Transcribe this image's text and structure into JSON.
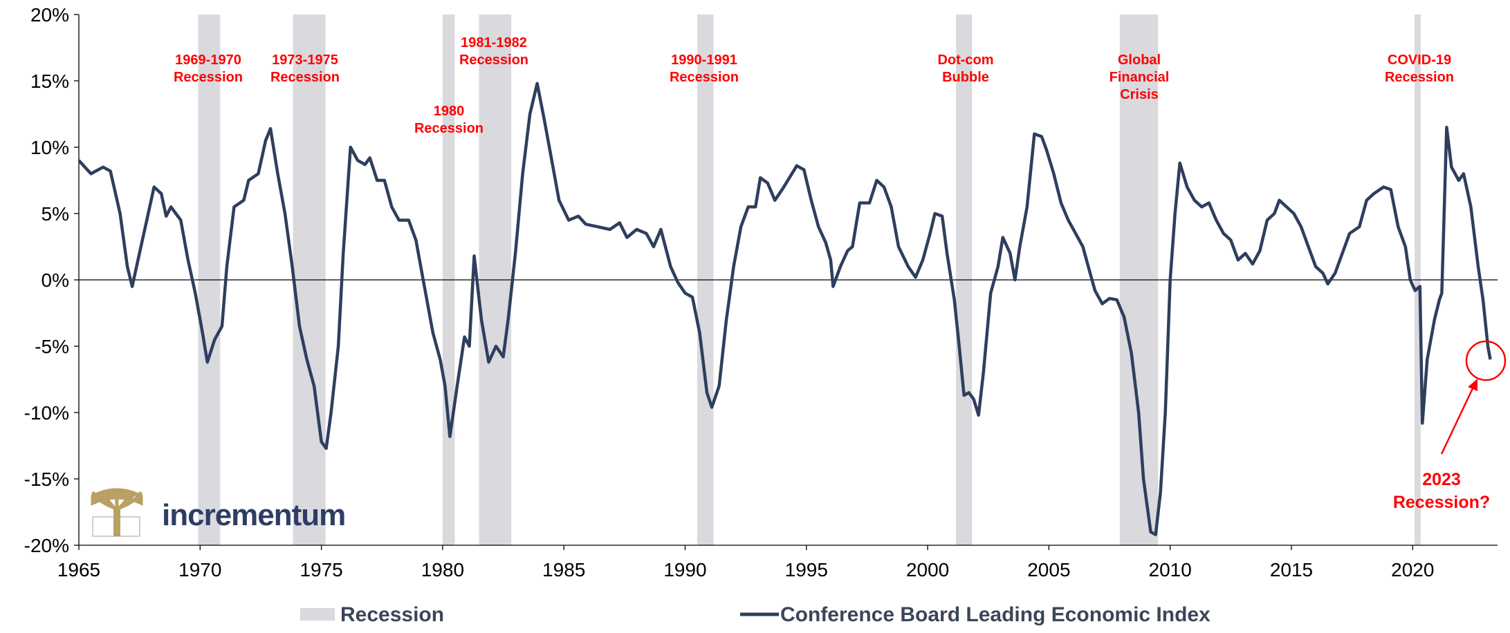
{
  "chart_data": {
    "type": "line",
    "x": [
      1965.0,
      1965.5,
      1966.0,
      1966.3,
      1966.7,
      1967.0,
      1967.2,
      1967.5,
      1967.8,
      1968.1,
      1968.4,
      1968.6,
      1968.8,
      1969.2,
      1969.5,
      1969.8,
      1970.1,
      1970.3,
      1970.6,
      1970.9,
      1971.1,
      1971.4,
      1971.8,
      1972.0,
      1972.4,
      1972.7,
      1972.9,
      1973.2,
      1973.5,
      1973.8,
      1974.1,
      1974.4,
      1974.7,
      1975.0,
      1975.2,
      1975.4,
      1975.7,
      1975.9,
      1976.2,
      1976.5,
      1976.8,
      1977.0,
      1977.3,
      1977.6,
      1977.9,
      1978.2,
      1978.6,
      1978.9,
      1979.2,
      1979.6,
      1979.9,
      1980.1,
      1980.3,
      1980.6,
      1980.9,
      1981.1,
      1981.3,
      1981.6,
      1981.9,
      1982.2,
      1982.5,
      1982.7,
      1983.0,
      1983.3,
      1983.6,
      1983.9,
      1984.2,
      1984.5,
      1984.8,
      1985.2,
      1985.6,
      1985.9,
      1986.4,
      1986.9,
      1987.3,
      1987.6,
      1988.0,
      1988.4,
      1988.7,
      1989.0,
      1989.4,
      1989.7,
      1990.0,
      1990.3,
      1990.6,
      1990.9,
      1991.1,
      1991.4,
      1991.7,
      1992.0,
      1992.3,
      1992.6,
      1992.9,
      1993.1,
      1993.4,
      1993.7,
      1994.0,
      1994.3,
      1994.6,
      1994.9,
      1995.2,
      1995.5,
      1995.8,
      1996.0,
      1996.1,
      1996.4,
      1996.7,
      1996.9,
      1997.2,
      1997.6,
      1997.9,
      1998.2,
      1998.5,
      1998.8,
      1999.2,
      1999.5,
      1999.8,
      2000.1,
      2000.3,
      2000.6,
      2000.8,
      2001.1,
      2001.3,
      2001.5,
      2001.7,
      2001.9,
      2002.1,
      2002.3,
      2002.6,
      2002.9,
      2003.1,
      2003.4,
      2003.6,
      2003.8,
      2004.1,
      2004.4,
      2004.7,
      2004.9,
      2005.2,
      2005.5,
      2005.8,
      2006.1,
      2006.4,
      2006.7,
      2006.9,
      2007.2,
      2007.5,
      2007.8,
      2008.1,
      2008.4,
      2008.7,
      2008.9,
      2009.2,
      2009.4,
      2009.6,
      2009.8,
      2010.0,
      2010.2,
      2010.4,
      2010.7,
      2011.0,
      2011.3,
      2011.6,
      2011.9,
      2012.2,
      2012.5,
      2012.8,
      2013.1,
      2013.4,
      2013.7,
      2014.0,
      2014.3,
      2014.5,
      2014.8,
      2015.1,
      2015.4,
      2015.7,
      2016.0,
      2016.3,
      2016.5,
      2016.8,
      2017.1,
      2017.4,
      2017.8,
      2018.1,
      2018.4,
      2018.8,
      2019.1,
      2019.4,
      2019.7,
      2019.9,
      2020.1,
      2020.3,
      2020.4,
      2020.6,
      2020.9,
      2021.1,
      2021.2,
      2021.4,
      2021.6,
      2021.9,
      2022.1,
      2022.4,
      2022.7,
      2022.9,
      2023.1,
      2023.2
    ],
    "series": [
      {
        "name": "Conference Board Leading Economic Index",
        "color": "#2e3e5e",
        "values": [
          9,
          8,
          8.5,
          8.2,
          5,
          1,
          -0.5,
          2,
          4.5,
          7,
          6.5,
          4.8,
          5.5,
          4.5,
          1.5,
          -1,
          -4,
          -6.2,
          -4.5,
          -3.5,
          1,
          5.5,
          6,
          7.5,
          8,
          10.5,
          11.4,
          8,
          5,
          1,
          -3.5,
          -6,
          -8,
          -12.2,
          -12.7,
          -10,
          -5,
          2,
          10,
          9,
          8.7,
          9.2,
          7.5,
          7.5,
          5.5,
          4.5,
          4.5,
          3,
          0,
          -4,
          -6,
          -8,
          -11.8,
          -8,
          -4.3,
          -5,
          1.8,
          -3,
          -6.2,
          -5,
          -5.8,
          -3,
          2,
          8,
          12.5,
          14.8,
          12,
          9,
          6,
          4.5,
          4.8,
          4.2,
          4,
          3.8,
          4.3,
          3.2,
          3.8,
          3.5,
          2.5,
          3.8,
          1,
          -0.2,
          -1,
          -1.3,
          -4,
          -8.5,
          -9.6,
          -8,
          -3,
          1,
          4,
          5.5,
          5.5,
          7.7,
          7.3,
          6,
          6.8,
          7.7,
          8.6,
          8.3,
          6,
          4,
          2.8,
          1.5,
          -0.5,
          1,
          2.2,
          2.5,
          5.8,
          5.8,
          7.5,
          7,
          5.5,
          2.5,
          1,
          0.2,
          1.5,
          3.5,
          5,
          4.8,
          2,
          -1.5,
          -5,
          -8.7,
          -8.5,
          -9,
          -10.2,
          -7,
          -1,
          1,
          3.2,
          2,
          0,
          2.5,
          5.5,
          11,
          10.8,
          9.8,
          8,
          5.8,
          4.5,
          3.5,
          2.5,
          0.5,
          -0.8,
          -1.8,
          -1.4,
          -1.5,
          -2.8,
          -5.5,
          -10,
          -15,
          -19,
          -19.2,
          -16,
          -10,
          0,
          5,
          8.8,
          7,
          6,
          5.5,
          5.8,
          4.5,
          3.5,
          3,
          1.5,
          2,
          1.2,
          2.2,
          4.5,
          5,
          6,
          5.5,
          5,
          4,
          2.5,
          1,
          0.5,
          -0.3,
          0.5,
          2,
          3.5,
          4,
          6,
          6.5,
          7,
          6.8,
          4,
          2.5,
          0,
          -0.8,
          -0.5,
          -10.8,
          -6,
          -3,
          -1.5,
          -1,
          11.5,
          8.5,
          7.5,
          8,
          5.5,
          1,
          -1.5,
          -5,
          -6
        ]
      }
    ],
    "recessions": {
      "name": "Recession",
      "color": "#d9d9de",
      "periods": [
        [
          1969.92,
          1970.83
        ],
        [
          1973.83,
          1975.17
        ],
        [
          1980.0,
          1980.5
        ],
        [
          1981.5,
          1982.83
        ],
        [
          1990.5,
          1991.17
        ],
        [
          2001.17,
          2001.83
        ],
        [
          2007.92,
          2009.5
        ],
        [
          2020.08,
          2020.33
        ]
      ]
    },
    "annotations": [
      {
        "lines": [
          "1969-1970",
          "Recession"
        ]
      },
      {
        "lines": [
          "1973-1975",
          "Recession"
        ]
      },
      {
        "lines": [
          "1980",
          "Recession"
        ]
      },
      {
        "lines": [
          "1981-1982",
          "Recession"
        ]
      },
      {
        "lines": [
          "1990-1991",
          "Recession"
        ]
      },
      {
        "lines": [
          "Dot-com",
          "Bubble"
        ]
      },
      {
        "lines": [
          "Global",
          "Financial",
          "Crisis"
        ]
      },
      {
        "lines": [
          "COVID-19",
          "Recession"
        ]
      },
      {
        "lines": [
          "2023",
          "Recession?"
        ]
      }
    ],
    "logo": "incrementum",
    "xlim": [
      1965,
      2023.5
    ],
    "xticks": [
      1965,
      1970,
      1975,
      1980,
      1985,
      1990,
      1995,
      2000,
      2005,
      2010,
      2015,
      2020
    ],
    "ylim": [
      -20,
      20
    ],
    "yticks": [
      {
        "value": -20,
        "label": "-20%"
      },
      {
        "value": -15,
        "label": "-15%"
      },
      {
        "value": -10,
        "label": "-10%"
      },
      {
        "value": -5,
        "label": "-5%"
      },
      {
        "value": 0,
        "label": "0%"
      },
      {
        "value": 5,
        "label": "5%"
      },
      {
        "value": 10,
        "label": "10%"
      },
      {
        "value": 15,
        "label": "15%"
      },
      {
        "value": 20,
        "label": "20%"
      }
    ],
    "grid": false,
    "legend": "bottom"
  }
}
